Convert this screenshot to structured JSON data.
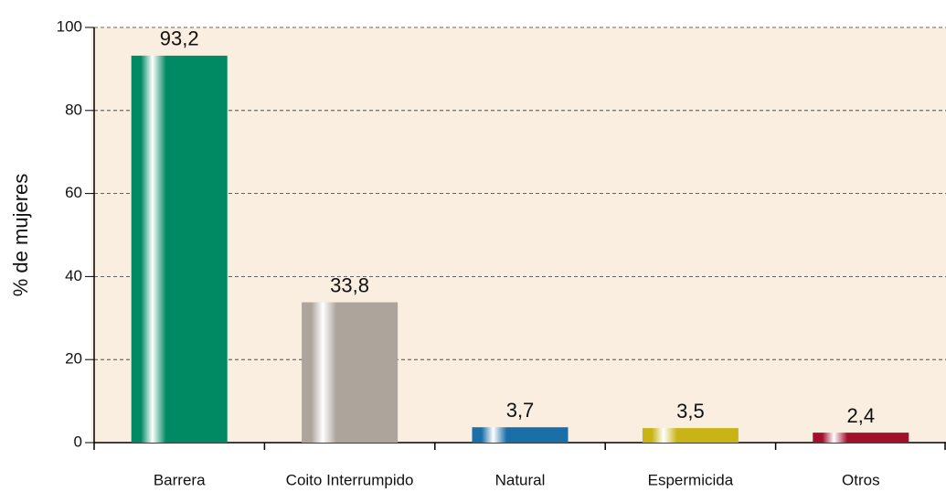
{
  "chart_data": {
    "type": "bar",
    "y_label": "% de mujeres",
    "categories": [
      "Barrera",
      "Coito Interrumpido",
      "Natural",
      "Espermicida",
      "Otros"
    ],
    "values": [
      93.2,
      33.8,
      3.7,
      3.5,
      2.4
    ],
    "value_labels": [
      "93,2",
      "33,8",
      "3,7",
      "3,5",
      "2,4"
    ],
    "colors": [
      "#008a63",
      "#ada49c",
      "#1a6fa8",
      "#c9b418",
      "#a3102c"
    ],
    "ylim": [
      0,
      100
    ],
    "yticks": [
      0,
      20,
      40,
      60,
      80,
      100
    ],
    "grid": true
  }
}
